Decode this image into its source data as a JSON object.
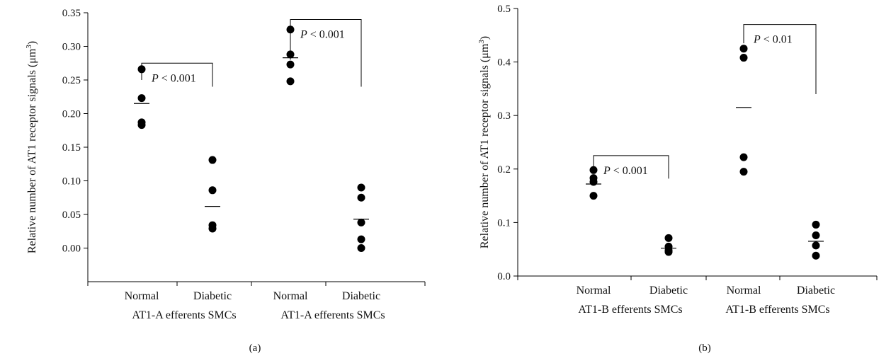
{
  "chart_data": [
    {
      "type": "scatter",
      "panel_label": "(a)",
      "ylabel": "Relative number of AT1 receptor signals (μm",
      "ylabel_sup": "3",
      "ylabel_close": ")",
      "ylim": [
        -0.05,
        0.35
      ],
      "yticks": [
        "0.00",
        "0.05",
        "0.10",
        "0.15",
        "0.20",
        "0.25",
        "0.30",
        "0.35"
      ],
      "categories": [
        {
          "label": "Normal",
          "group": "AT1-A efferents SMCs",
          "points": [
            0.266,
            0.223,
            0.187,
            0.183
          ],
          "mean": 0.215
        },
        {
          "label": "Diabetic",
          "group": "AT1-A efferents SMCs",
          "points": [
            0.131,
            0.086,
            0.034,
            0.029
          ],
          "mean": 0.062
        },
        {
          "label": "Normal",
          "group": "AT1-A efferents SMCs",
          "points": [
            0.325,
            0.288,
            0.273,
            0.248
          ],
          "mean": 0.283
        },
        {
          "label": "Diabetic",
          "group": "AT1-A efferents SMCs",
          "points": [
            0.09,
            0.075,
            0.038,
            0.013,
            0.0
          ],
          "mean": 0.043
        }
      ],
      "group_labels": [
        "AT1-A efferents SMCs",
        "AT1-A efferents SMCs"
      ],
      "annotations": [
        {
          "italic": "P",
          "text": " < 0.001",
          "from": 0,
          "to": 1,
          "top": 0.275,
          "left_end": 0.25,
          "right_end": 0.24
        },
        {
          "italic": "P",
          "text": " < 0.001",
          "from": 2,
          "to": 3,
          "top": 0.34,
          "left_end": 0.28,
          "right_end": 0.24
        }
      ]
    },
    {
      "type": "scatter",
      "panel_label": "(b)",
      "ylabel": "Relative number of AT1 receptor signals (μm",
      "ylabel_sup": "3",
      "ylabel_close": ")",
      "ylim": [
        0.0,
        0.5
      ],
      "yticks": [
        "0.0",
        "0.1",
        "0.2",
        "0.3",
        "0.4",
        "0.5"
      ],
      "categories": [
        {
          "label": "Normal",
          "group": "AT1-B efferents SMCs",
          "points": [
            0.198,
            0.183,
            0.176,
            0.15
          ],
          "mean": 0.172
        },
        {
          "label": "Diabetic",
          "group": "AT1-B efferents SMCs",
          "points": [
            0.071,
            0.055,
            0.048,
            0.045
          ],
          "mean": 0.052
        },
        {
          "label": "Normal",
          "group": "AT1-B efferents SMCs",
          "points": [
            0.425,
            0.408,
            0.222,
            0.195
          ],
          "mean": 0.315
        },
        {
          "label": "Diabetic",
          "group": "AT1-B efferents SMCs",
          "points": [
            0.096,
            0.076,
            0.057,
            0.038
          ],
          "mean": 0.065
        }
      ],
      "group_labels": [
        "AT1-B efferents SMCs",
        "AT1-B efferents SMCs"
      ],
      "annotations": [
        {
          "italic": "P",
          "text": " < 0.001",
          "from": 0,
          "to": 1,
          "top": 0.225,
          "left_end": 0.205,
          "right_end": 0.182
        },
        {
          "italic": "P",
          "text": " < 0.01",
          "from": 2,
          "to": 3,
          "top": 0.47,
          "left_end": 0.435,
          "right_end": 0.34
        }
      ]
    }
  ]
}
